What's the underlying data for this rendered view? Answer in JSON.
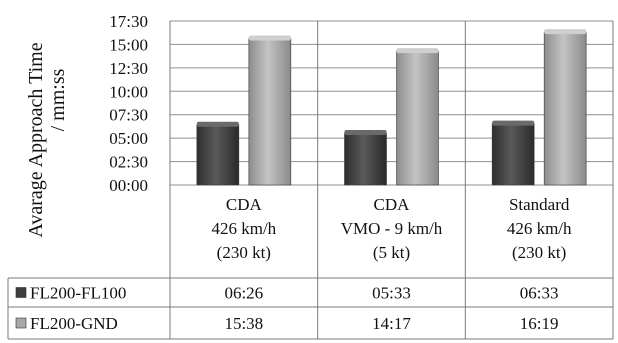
{
  "chart_data": {
    "type": "bar",
    "ylabel": [
      "Avarage Approach Time",
      "/ mm:ss"
    ],
    "yticks": [
      "00:00",
      "02:30",
      "05:00",
      "07:30",
      "10:00",
      "12:30",
      "15:00",
      "17:30"
    ],
    "ylim_seconds": [
      0,
      1050
    ],
    "categories": [
      [
        "CDA",
        "426 km/h",
        "(230 kt)"
      ],
      [
        "CDA",
        "VMO - 9 km/h",
        "(5 kt)"
      ],
      [
        "Standard",
        "426 km/h",
        "(230 kt)"
      ]
    ],
    "series": [
      {
        "name": "FL200-FL100",
        "color": "#4a4a4a",
        "labels": [
          "06:26",
          "05:33",
          "06:33"
        ],
        "values_seconds": [
          386,
          333,
          393
        ]
      },
      {
        "name": "FL200-GND",
        "color": "#a6a6a6",
        "labels": [
          "15:38",
          "14:17",
          "16:19"
        ],
        "values_seconds": [
          938,
          857,
          979
        ]
      }
    ],
    "grid": true,
    "legend": "data-table"
  }
}
